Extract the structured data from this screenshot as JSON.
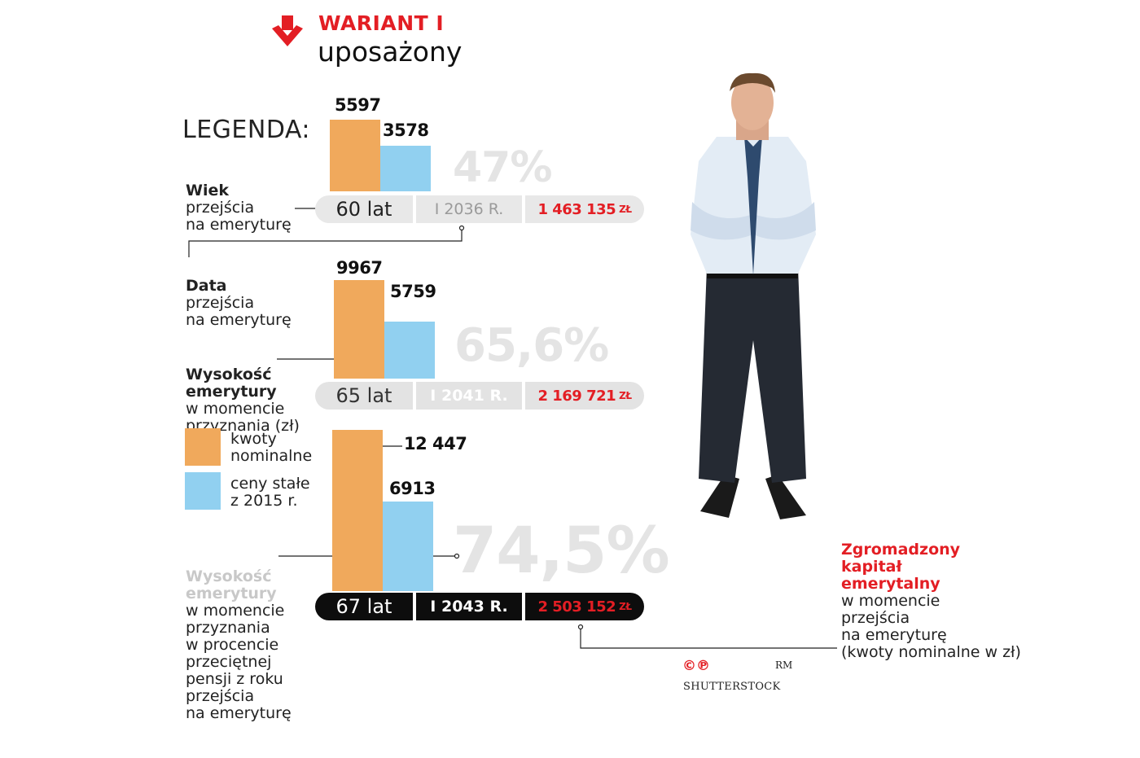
{
  "header": {
    "title": "WARIANT I",
    "subtitle": "uposażony",
    "arrow_icon": "arrow-down-icon",
    "accent": "#e31e24"
  },
  "legend": {
    "title": "LEGENDA:",
    "wiek": {
      "bold": "Wiek",
      "rest": "przejścia\nna emeryturę"
    },
    "data": {
      "bold": "Data",
      "rest": "przejścia\nna emeryturę"
    },
    "wysokosc": {
      "bold": "Wysokość\nemerytury",
      "rest": "w momencie\nprzyznania (zł)"
    },
    "nominal": "kwoty\nnominalne",
    "constant": "ceny stałe\nz 2015 r.",
    "percent": {
      "bold": "Wysokość\nemerytury",
      "rest": "w momencie\nprzyznania\nw procencie\nprzeciętnej\npensji z roku\nprzejścia\nna emeryturę"
    }
  },
  "colors": {
    "nominal": "#f0a95c",
    "constant": "#91d0f0",
    "red": "#e31e24"
  },
  "chart_data": {
    "type": "bar",
    "categories": [
      "60 lat",
      "65 lat",
      "67 lat"
    ],
    "series": [
      {
        "name": "kwoty nominalne",
        "values": [
          5597,
          9967,
          12447
        ]
      },
      {
        "name": "ceny stałe z 2015 r.",
        "values": [
          3578,
          5759,
          6913
        ]
      }
    ],
    "value_labels": {
      "nominal": [
        "5597",
        "9967",
        "12 447"
      ],
      "constant": [
        "3578",
        "5759",
        "6913"
      ]
    },
    "percent_labels": [
      "47%",
      "65,6%",
      "74,5%"
    ],
    "ages": [
      "60 lat",
      "65 lat",
      "67 lat"
    ],
    "dates": [
      "I 2036 R.",
      "I 2041 R.",
      "I 2043 R."
    ],
    "capital": [
      "1 463 135",
      "2 169 721",
      "2 503 152"
    ],
    "capital_unit": "ZŁ"
  },
  "note": {
    "red": "Zgromadzony\nkapitał\nemerytalny",
    "text": "w momencie\nprzejścia\nna emeryturę\n(kwoty  nominalne w zł)"
  },
  "credit": {
    "symbols": "©℗",
    "rm": "RM",
    "name": "SHUTTERSTOCK"
  },
  "photo_icon": "businessman-figure-icon"
}
